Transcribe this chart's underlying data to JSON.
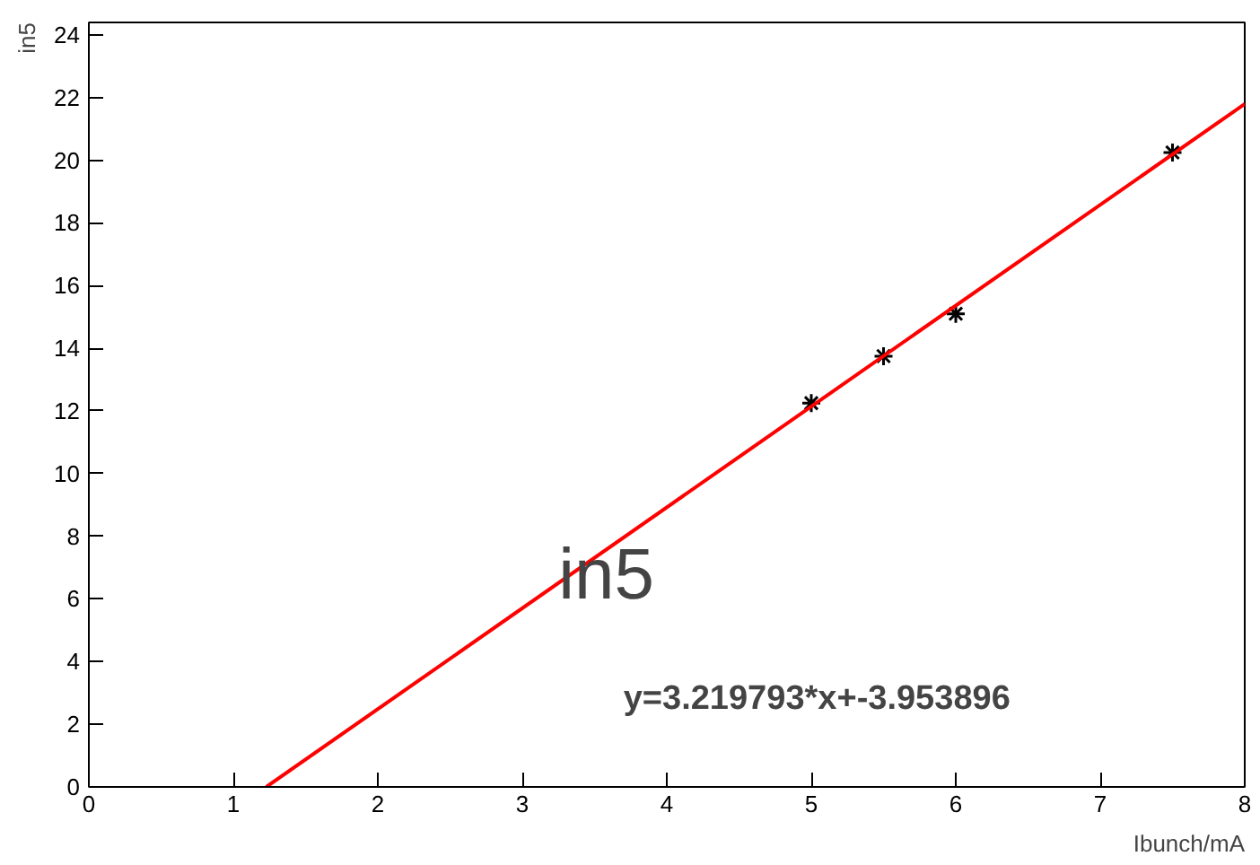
{
  "chart_data": {
    "type": "scatter",
    "title": "in5",
    "xlabel": "Ibunch/mA",
    "ylabel": "in5",
    "x": [
      5,
      5.5,
      6,
      7.5
    ],
    "series": [
      {
        "color": "#000000",
        "marker": "cross",
        "values": [
          12.25,
          13.75,
          15.1,
          20.25
        ]
      },
      {
        "type": "line",
        "color": "#ff0000",
        "marker": "none",
        "x": [
          1.228,
          8
        ],
        "values": [
          0,
          21.8
        ]
      }
    ],
    "annotations": [
      "y=3.219793*x+-3.953896"
    ],
    "xlim": [
      0,
      8
    ],
    "xticks": [
      0,
      1,
      2,
      3,
      4,
      5,
      6,
      7,
      8
    ],
    "ylim": [
      0,
      24.4
    ],
    "yticks": [
      0,
      2,
      4,
      6,
      8,
      10,
      12,
      14,
      16,
      18,
      20,
      22,
      24
    ],
    "grid": false
  }
}
